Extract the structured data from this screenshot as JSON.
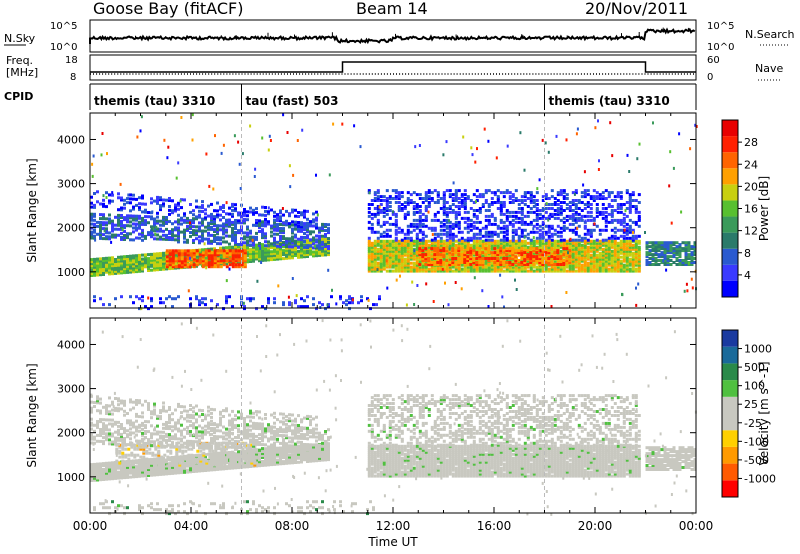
{
  "header": {
    "station": "Goose Bay (fitACF)",
    "beam": "Beam 14",
    "date": "20/Nov/2011"
  },
  "strip_labels": {
    "nsky": "N.Sky",
    "nsearch": "N.Search",
    "freq_line1": "Freq.",
    "freq_line2": "[MHz]",
    "nave": "Nave",
    "cpid": "CPID"
  },
  "strip_ticks": {
    "noise_left": [
      "10^5",
      "10^0"
    ],
    "noise_right": [
      "10^5",
      "10^0"
    ],
    "freq_left": [
      "18",
      "8"
    ],
    "freq_right": [
      "60",
      "0"
    ]
  },
  "cpid_segments": [
    {
      "label": "themis (tau) 3310",
      "start_hour": 0
    },
    {
      "label": "tau (fast) 503",
      "start_hour": 6
    },
    {
      "label": "themis (tau) 3310",
      "start_hour": 18
    }
  ],
  "chart_data": [
    {
      "type": "heatmap",
      "name": "Power",
      "xlabel": "Time UT",
      "ylabel": "Slant Range [km]",
      "xlim": [
        0,
        24
      ],
      "ylim": [
        180,
        4600
      ],
      "x_ticks": [
        "00:00",
        "04:00",
        "08:00",
        "12:00",
        "16:00",
        "20:00",
        "00:00"
      ],
      "y_ticks": [
        "1000",
        "2000",
        "3000",
        "4000"
      ],
      "colorbar": {
        "label": "Power [dB]",
        "ticks": [
          "4",
          "8",
          "12",
          "16",
          "20",
          "24",
          "28"
        ],
        "colors": [
          "#0000ff",
          "#3a3aff",
          "#2a5ad0",
          "#2a7a6a",
          "#3a9a5a",
          "#58c030",
          "#c8d010",
          "#ffa000",
          "#ff6400",
          "#ff2000",
          "#e80000"
        ]
      },
      "bands": [
        {
          "t0": 0.0,
          "t1": 9.5,
          "r0": 950,
          "r1": 1350,
          "rslope": 60,
          "level": 5,
          "density": 0.95
        },
        {
          "t0": 3.0,
          "t1": 6.2,
          "r0": 1150,
          "r1": 1550,
          "rslope": 0,
          "level": 8,
          "density": 0.85
        },
        {
          "t0": 0.0,
          "t1": 9.5,
          "r0": 1800,
          "r1": 2350,
          "rslope": -30,
          "level": 2,
          "density": 0.55
        },
        {
          "t0": 0.0,
          "t1": 9.0,
          "r0": 2500,
          "r1": 2900,
          "rslope": -60,
          "level": 1,
          "density": 0.35
        },
        {
          "t0": 11.0,
          "t1": 21.8,
          "r0": 1050,
          "r1": 1750,
          "rslope": 0,
          "level": 6,
          "density": 0.95
        },
        {
          "t0": 13.0,
          "t1": 19.0,
          "r0": 1200,
          "r1": 1600,
          "rslope": 0,
          "level": 8,
          "density": 0.6
        },
        {
          "t0": 11.0,
          "t1": 21.8,
          "r0": 1750,
          "r1": 2900,
          "rslope": 0,
          "level": 1,
          "density": 0.4
        },
        {
          "t0": 22.0,
          "t1": 24.0,
          "r0": 1200,
          "r1": 1700,
          "rslope": 0,
          "level": 3,
          "density": 0.8
        },
        {
          "t0": 0.0,
          "t1": 11.5,
          "r0": 200,
          "r1": 500,
          "rslope": 0,
          "level": 1,
          "density": 0.15
        }
      ]
    },
    {
      "type": "heatmap",
      "name": "Velocity",
      "xlabel": "Time UT",
      "ylabel": "Slant Range [km]",
      "xlim": [
        0,
        24
      ],
      "ylim": [
        180,
        4600
      ],
      "x_ticks": [
        "00:00",
        "04:00",
        "08:00",
        "12:00",
        "16:00",
        "20:00",
        "00:00"
      ],
      "y_ticks": [
        "1000",
        "2000",
        "3000",
        "4000"
      ],
      "colorbar": {
        "label": "Velocity [m s^-1]",
        "ticks": [
          "1000",
          "500",
          "100",
          "25",
          "-25",
          "-100",
          "-500",
          "-1000"
        ],
        "colors": [
          "#1a3aa0",
          "#1a6a9a",
          "#2a8a4a",
          "#50c040",
          "#c8c8c0",
          "#c8c8c0",
          "#ffd000",
          "#ff9a00",
          "#ff5a00",
          "#ff0000"
        ]
      },
      "bands": [
        {
          "t0": 0.0,
          "t1": 9.5,
          "r0": 950,
          "r1": 1350,
          "rslope": 60,
          "level": 4,
          "density": 0.95
        },
        {
          "t0": 1.0,
          "t1": 6.5,
          "r0": 1300,
          "r1": 1800,
          "rslope": 0,
          "level": 6,
          "density": 0.45
        },
        {
          "t0": 0.0,
          "t1": 9.5,
          "r0": 1800,
          "r1": 2350,
          "rslope": -30,
          "level": 4,
          "density": 0.55
        },
        {
          "t0": 0.0,
          "t1": 9.0,
          "r0": 2500,
          "r1": 2900,
          "rslope": -60,
          "level": 4,
          "density": 0.35
        },
        {
          "t0": 11.0,
          "t1": 21.8,
          "r0": 1050,
          "r1": 1750,
          "rslope": 0,
          "level": 4,
          "density": 0.95
        },
        {
          "t0": 11.0,
          "t1": 21.8,
          "r0": 1750,
          "r1": 2900,
          "rslope": 0,
          "level": 4,
          "density": 0.4
        },
        {
          "t0": 22.0,
          "t1": 24.0,
          "r0": 1200,
          "r1": 1700,
          "rslope": 0,
          "level": 4,
          "density": 0.8
        },
        {
          "t0": 0.0,
          "t1": 11.5,
          "r0": 200,
          "r1": 500,
          "rslope": 0,
          "level": 3,
          "density": 0.15
        }
      ]
    }
  ]
}
